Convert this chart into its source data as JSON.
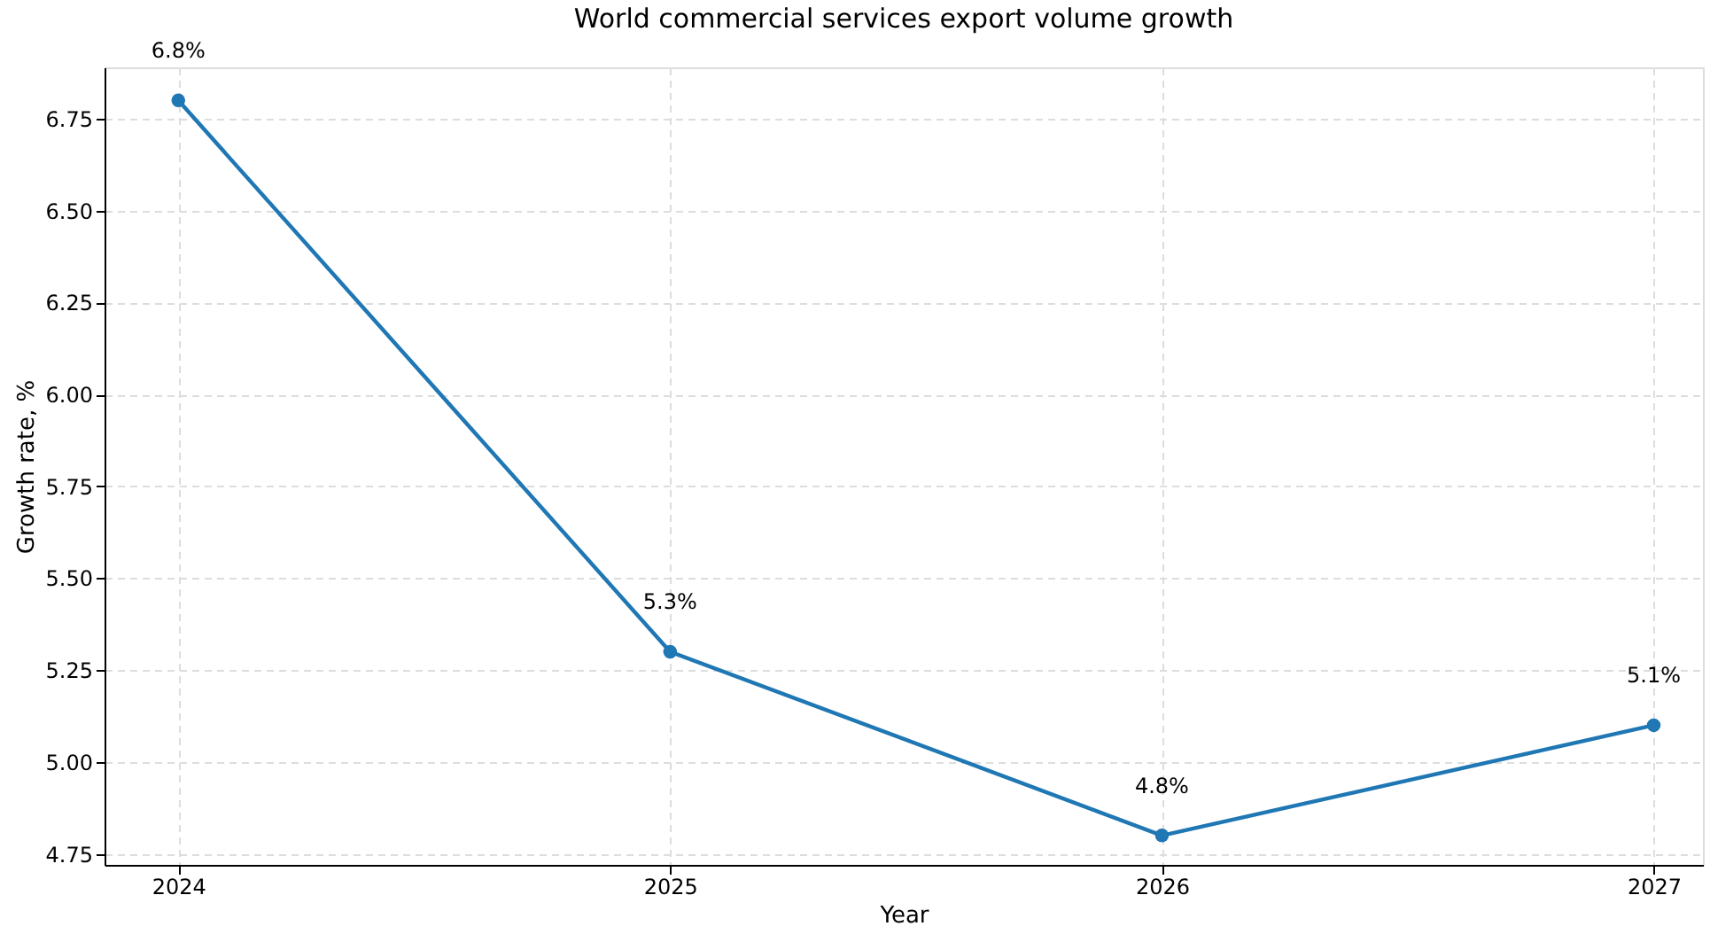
{
  "chart_data": {
    "type": "line",
    "title": "World commercial services export volume growth",
    "xlabel": "Year",
    "ylabel": "Growth rate, %",
    "x": [
      2024,
      2025,
      2026,
      2027
    ],
    "series": [
      {
        "color": "#1f77b4",
        "values": [
          6.8,
          5.3,
          4.8,
          5.1
        ],
        "value_labels": [
          "6.8%",
          "5.3%",
          "4.8%",
          "5.1%"
        ]
      }
    ],
    "xlim": [
      2023.85,
      2027.1
    ],
    "xticks": [
      2024,
      2025,
      2026,
      2027
    ],
    "ylim": [
      4.72,
      6.89
    ],
    "yticks": [
      {
        "value": 4.75,
        "label": "4.75"
      },
      {
        "value": 5.0,
        "label": "5.00"
      },
      {
        "value": 5.25,
        "label": "5.25"
      },
      {
        "value": 5.5,
        "label": "5.50"
      },
      {
        "value": 5.75,
        "label": "5.75"
      },
      {
        "value": 6.0,
        "label": "6.00"
      },
      {
        "value": 6.25,
        "label": "6.25"
      },
      {
        "value": 6.5,
        "label": "6.50"
      },
      {
        "value": 6.75,
        "label": "6.75"
      }
    ],
    "grid": true,
    "marker": "circle",
    "line_style": "solid"
  }
}
